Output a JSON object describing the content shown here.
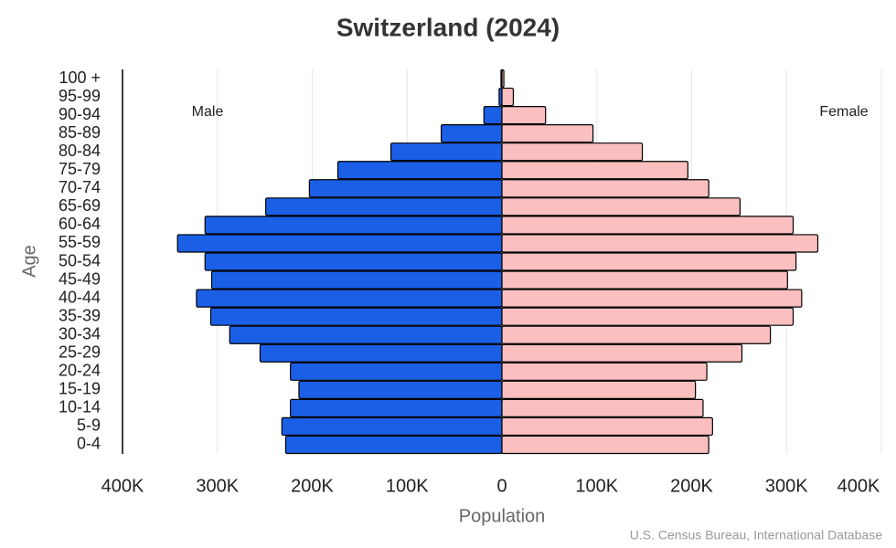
{
  "chart_data": {
    "type": "pyramid",
    "title": "Switzerland (2024)",
    "x_label": "Population",
    "y_label": "Age",
    "source": "U.S. Census Bureau, International Database",
    "categories": [
      "0-4",
      "5-9",
      "10-14",
      "15-19",
      "20-24",
      "25-29",
      "30-34",
      "35-39",
      "40-44",
      "45-49",
      "50-54",
      "55-59",
      "60-64",
      "65-69",
      "70-74",
      "75-79",
      "80-84",
      "85-89",
      "90-94",
      "95-99",
      "100 +"
    ],
    "series": [
      {
        "name": "Male",
        "color": "#1a5fe6",
        "values": [
          -228000,
          -232000,
          -223000,
          -214000,
          -223000,
          -255000,
          -287000,
          -307000,
          -322000,
          -306000,
          -313000,
          -342000,
          -313000,
          -249000,
          -203000,
          -173000,
          -117000,
          -64000,
          -19000,
          -3000,
          -1000
        ]
      },
      {
        "name": "Female",
        "color": "#fbbfbf",
        "values": [
          218000,
          222000,
          212000,
          204000,
          216000,
          253000,
          283000,
          307000,
          316000,
          301000,
          310000,
          333000,
          307000,
          251000,
          218000,
          196000,
          148000,
          96000,
          46000,
          12000,
          2000
        ]
      }
    ],
    "xlim": [
      -400000,
      400000
    ],
    "xticks": [
      {
        "value": -400000,
        "label": "400K"
      },
      {
        "value": -300000,
        "label": "300K"
      },
      {
        "value": -200000,
        "label": "200K"
      },
      {
        "value": -100000,
        "label": "100K"
      },
      0,
      {
        "value": 100000,
        "label": "100K"
      },
      {
        "value": 200000,
        "label": "200K"
      },
      {
        "value": 300000,
        "label": "300K"
      },
      {
        "value": 400000,
        "label": "400K"
      }
    ],
    "grid": true
  }
}
